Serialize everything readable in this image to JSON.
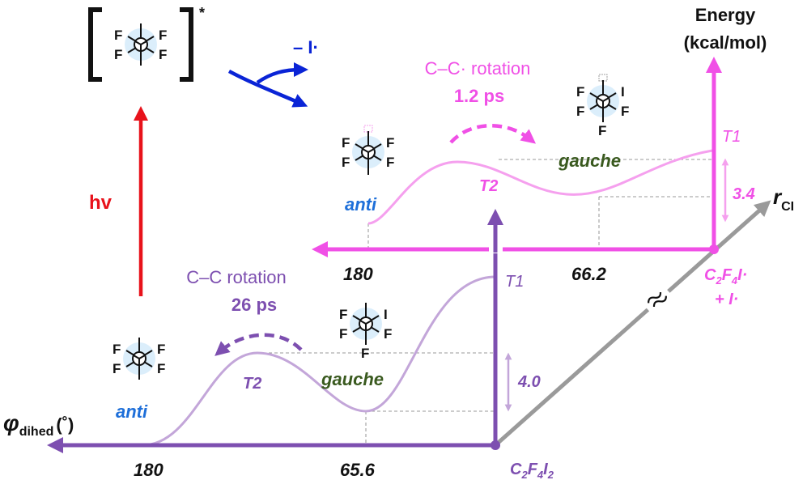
{
  "axes": {
    "energy_axis_label_line1": "Energy",
    "energy_axis_label_line2": "(kcal/mol)",
    "dihedral_axis_symbol": "φ",
    "dihedral_axis_subscript": "dihed",
    "dihedral_axis_unit": "(˚)",
    "reaction_coordinate_symbol": "r",
    "reaction_coordinate_subscript": "CI"
  },
  "excitation": {
    "label": "hv",
    "excited_state_mark": "*",
    "dissociation_label": "– I·"
  },
  "upper_surface": {
    "rotation_label": "C–C· rotation",
    "rotation_time": "1.2 ps",
    "anti_label": "anti",
    "gauche_label": "gauche",
    "t1_label": "T1",
    "t2_label": "T2",
    "barrier_value": "3.4",
    "anti_angle": "180",
    "gauche_angle": "66.2",
    "species_line1_parts": [
      "C",
      "2",
      "F",
      "4",
      "I·"
    ],
    "species_line2": "+ I·"
  },
  "lower_surface": {
    "rotation_label": "C–C rotation",
    "rotation_time": "26 ps",
    "anti_label": "anti",
    "gauche_label": "gauche",
    "t1_label": "T1",
    "t2_label": "T2",
    "barrier_value": "4.0",
    "anti_angle": "180",
    "gauche_angle": "65.6",
    "species_parts": [
      "C",
      "2",
      "F",
      "4",
      "I",
      "2"
    ]
  },
  "axis_break_mark": "≈",
  "newman": {
    "f": "F",
    "i": "I"
  },
  "colors": {
    "upper_surface": "#f050e6",
    "upper_curve": "#f5a0ee",
    "lower_surface": "#7d4fb0",
    "lower_curve": "#c3a6d9",
    "excitation": "#e8121b",
    "dissociation": "#0a24d6",
    "anti_text": "#1e6fd9",
    "gauche_text": "#3a5a1f",
    "break_axis": "#9a9a9a"
  }
}
